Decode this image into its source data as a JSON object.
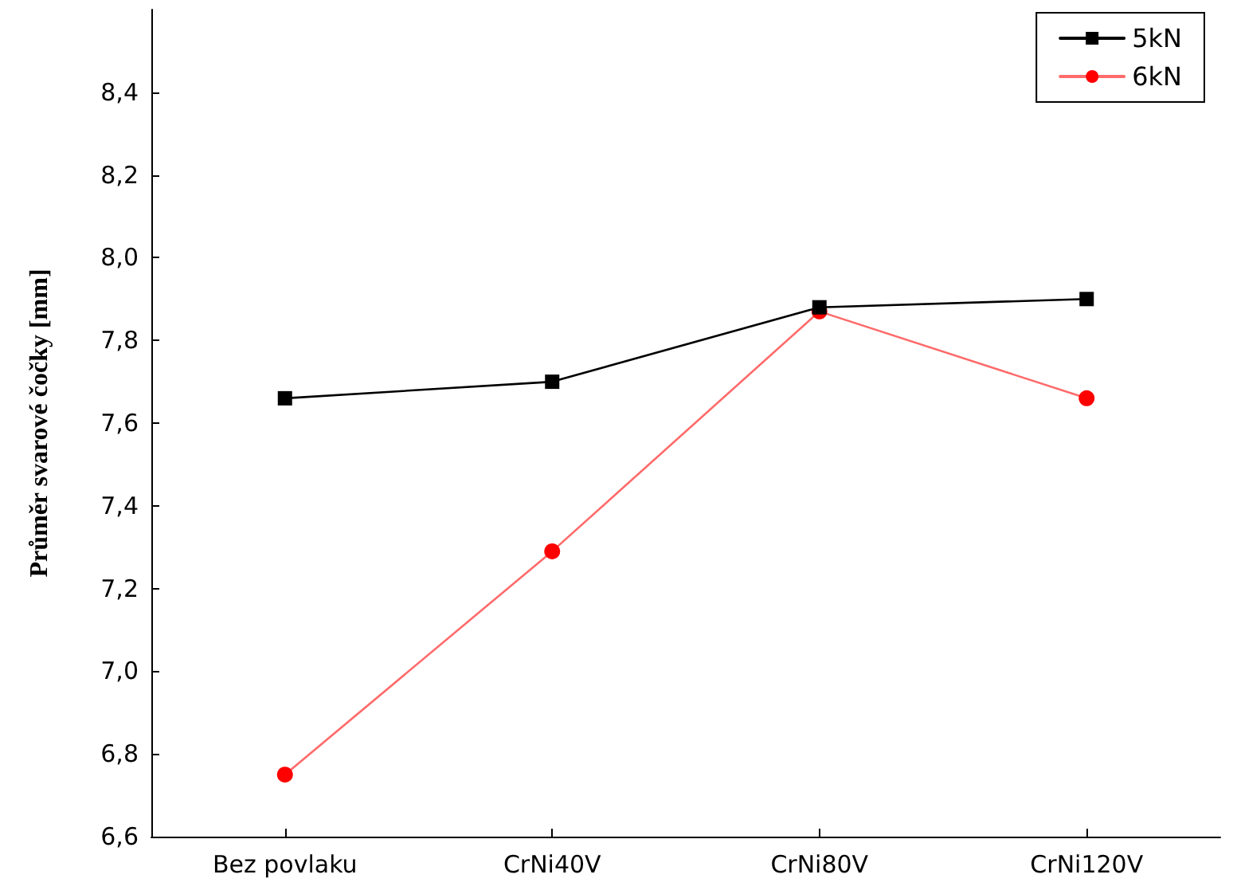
{
  "chart_data": {
    "type": "line",
    "ylabel": "Průměr svarové čočky [mm]",
    "categories": [
      "Bez povlaku",
      "CrNi40V",
      "CrNi80V",
      "CrNi120V"
    ],
    "series": [
      {
        "name": "5kN",
        "color": "#000000",
        "marker": "square",
        "values": [
          7.66,
          7.7,
          7.88,
          7.9
        ]
      },
      {
        "name": "6kN",
        "color": "#ff0000",
        "marker": "circle",
        "values": [
          6.75,
          7.29,
          7.87,
          7.66
        ]
      }
    ],
    "ylim": [
      6.6,
      8.6
    ],
    "yticks": [
      {
        "value": 6.6,
        "label": "6,6"
      },
      {
        "value": 6.8,
        "label": "6,8"
      },
      {
        "value": 7.0,
        "label": "7,0"
      },
      {
        "value": 7.2,
        "label": "7,2"
      },
      {
        "value": 7.4,
        "label": "7,4"
      },
      {
        "value": 7.6,
        "label": "7,6"
      },
      {
        "value": 7.8,
        "label": "7,8"
      },
      {
        "value": 8.0,
        "label": "8,0"
      },
      {
        "value": 8.2,
        "label": "8,2"
      },
      {
        "value": 8.4,
        "label": "8,4"
      }
    ],
    "grid": false,
    "legend": "top right",
    "line_style": "solid"
  }
}
